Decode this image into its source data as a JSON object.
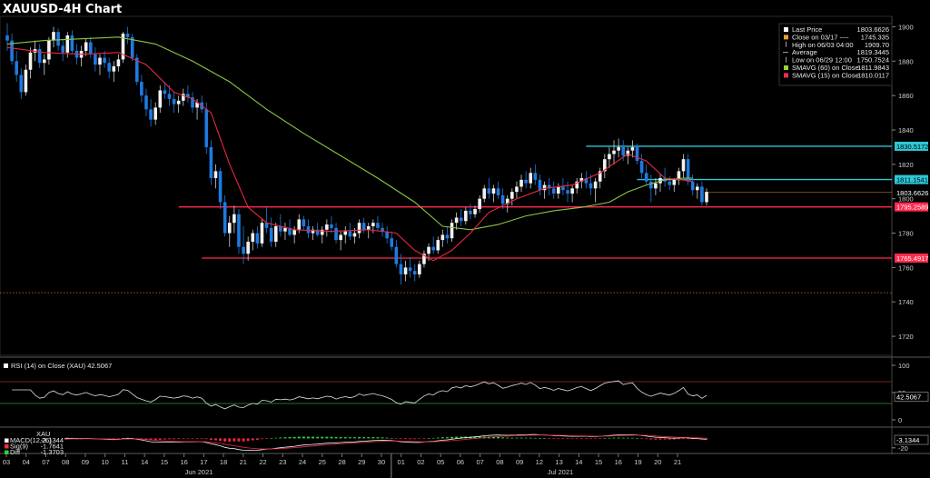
{
  "chart_data": {
    "type": "candlestick",
    "title": "XAUUSD-4H Chart",
    "y_range": [
      1710,
      1905
    ],
    "y_ticks": [
      1720,
      1740,
      1760,
      1780,
      1800,
      1820,
      1840,
      1860,
      1880,
      1900
    ],
    "day_labels": [
      "03",
      "04",
      "07",
      "08",
      "09",
      "10",
      "11",
      "14",
      "15",
      "16",
      "17",
      "18",
      "21",
      "22",
      "23",
      "24",
      "25",
      "28",
      "29",
      "30",
      "01",
      "02",
      "05",
      "06",
      "07",
      "08",
      "09",
      "12",
      "13",
      "14",
      "15",
      "16",
      "19",
      "20",
      "21"
    ],
    "month_labels": [
      "Jun 2021",
      "Jul 2021"
    ],
    "ohlc": [
      [
        1895,
        1902,
        1886,
        1892
      ],
      [
        1892,
        1896,
        1878,
        1880
      ],
      [
        1880,
        1886,
        1868,
        1872
      ],
      [
        1872,
        1876,
        1858,
        1862
      ],
      [
        1862,
        1878,
        1860,
        1875
      ],
      [
        1875,
        1888,
        1870,
        1885
      ],
      [
        1885,
        1892,
        1880,
        1887
      ],
      [
        1887,
        1890,
        1876,
        1879
      ],
      [
        1879,
        1884,
        1872,
        1881
      ],
      [
        1881,
        1894,
        1878,
        1892
      ],
      [
        1892,
        1900,
        1888,
        1897
      ],
      [
        1897,
        1899,
        1886,
        1889
      ],
      [
        1889,
        1893,
        1880,
        1885
      ],
      [
        1885,
        1897,
        1882,
        1895
      ],
      [
        1895,
        1898,
        1884,
        1886
      ],
      [
        1886,
        1890,
        1878,
        1882
      ],
      [
        1882,
        1889,
        1877,
        1886
      ],
      [
        1886,
        1893,
        1883,
        1891
      ],
      [
        1891,
        1894,
        1882,
        1884
      ],
      [
        1884,
        1888,
        1874,
        1878
      ],
      [
        1878,
        1884,
        1872,
        1882
      ],
      [
        1882,
        1886,
        1876,
        1879
      ],
      [
        1879,
        1882,
        1870,
        1874
      ],
      [
        1874,
        1880,
        1868,
        1877
      ],
      [
        1877,
        1884,
        1874,
        1881
      ],
      [
        1881,
        1897,
        1879,
        1896
      ],
      [
        1896,
        1900,
        1890,
        1894
      ],
      [
        1894,
        1896,
        1880,
        1882
      ],
      [
        1882,
        1884,
        1866,
        1868
      ],
      [
        1868,
        1872,
        1856,
        1860
      ],
      [
        1860,
        1864,
        1848,
        1852
      ],
      [
        1852,
        1858,
        1842,
        1846
      ],
      [
        1846,
        1856,
        1843,
        1853
      ],
      [
        1853,
        1866,
        1850,
        1863
      ],
      [
        1863,
        1868,
        1858,
        1861
      ],
      [
        1861,
        1866,
        1854,
        1858
      ],
      [
        1858,
        1862,
        1850,
        1855
      ],
      [
        1855,
        1860,
        1850,
        1857
      ],
      [
        1857,
        1864,
        1854,
        1861
      ],
      [
        1861,
        1866,
        1856,
        1859
      ],
      [
        1859,
        1862,
        1850,
        1853
      ],
      [
        1853,
        1858,
        1846,
        1856
      ],
      [
        1856,
        1860,
        1850,
        1852
      ],
      [
        1852,
        1856,
        1826,
        1830
      ],
      [
        1830,
        1834,
        1808,
        1812
      ],
      [
        1812,
        1820,
        1806,
        1816
      ],
      [
        1816,
        1818,
        1794,
        1798
      ],
      [
        1798,
        1802,
        1778,
        1780
      ],
      [
        1780,
        1790,
        1772,
        1786
      ],
      [
        1786,
        1796,
        1780,
        1791
      ],
      [
        1791,
        1794,
        1768,
        1772
      ],
      [
        1772,
        1784,
        1762,
        1768
      ],
      [
        1768,
        1778,
        1764,
        1775
      ],
      [
        1775,
        1782,
        1770,
        1780
      ],
      [
        1780,
        1784,
        1771,
        1774
      ],
      [
        1774,
        1788,
        1772,
        1786
      ],
      [
        1786,
        1795,
        1780,
        1783
      ],
      [
        1783,
        1789,
        1772,
        1775
      ],
      [
        1775,
        1786,
        1772,
        1784
      ],
      [
        1784,
        1791,
        1778,
        1781
      ],
      [
        1781,
        1786,
        1776,
        1783
      ],
      [
        1783,
        1788,
        1778,
        1779
      ],
      [
        1779,
        1784,
        1774,
        1782
      ],
      [
        1782,
        1791,
        1780,
        1788
      ],
      [
        1788,
        1790,
        1782,
        1784
      ],
      [
        1784,
        1788,
        1777,
        1780
      ],
      [
        1780,
        1784,
        1776,
        1782
      ],
      [
        1782,
        1786,
        1778,
        1779
      ],
      [
        1779,
        1784,
        1774,
        1782
      ],
      [
        1782,
        1788,
        1778,
        1785
      ],
      [
        1785,
        1790,
        1780,
        1783
      ],
      [
        1783,
        1786,
        1774,
        1776
      ],
      [
        1776,
        1781,
        1770,
        1779
      ],
      [
        1779,
        1784,
        1774,
        1781
      ],
      [
        1781,
        1786,
        1776,
        1778
      ],
      [
        1778,
        1783,
        1774,
        1780
      ],
      [
        1780,
        1788,
        1777,
        1786
      ],
      [
        1786,
        1789,
        1780,
        1782
      ],
      [
        1782,
        1786,
        1777,
        1784
      ],
      [
        1784,
        1788,
        1780,
        1786
      ],
      [
        1786,
        1790,
        1781,
        1783
      ],
      [
        1783,
        1786,
        1778,
        1781
      ],
      [
        1781,
        1784,
        1774,
        1777
      ],
      [
        1777,
        1781,
        1770,
        1772
      ],
      [
        1772,
        1776,
        1760,
        1762
      ],
      [
        1762,
        1768,
        1750,
        1756
      ],
      [
        1756,
        1764,
        1752,
        1760
      ],
      [
        1760,
        1766,
        1754,
        1758
      ],
      [
        1758,
        1762,
        1752,
        1756
      ],
      [
        1756,
        1764,
        1754,
        1762
      ],
      [
        1762,
        1770,
        1760,
        1768
      ],
      [
        1768,
        1774,
        1764,
        1772
      ],
      [
        1772,
        1778,
        1768,
        1770
      ],
      [
        1770,
        1778,
        1768,
        1776
      ],
      [
        1776,
        1782,
        1772,
        1779
      ],
      [
        1779,
        1784,
        1774,
        1777
      ],
      [
        1777,
        1788,
        1775,
        1786
      ],
      [
        1786,
        1792,
        1782,
        1789
      ],
      [
        1789,
        1794,
        1784,
        1787
      ],
      [
        1787,
        1795,
        1785,
        1793
      ],
      [
        1793,
        1797,
        1788,
        1791
      ],
      [
        1791,
        1796,
        1789,
        1794
      ],
      [
        1794,
        1802,
        1792,
        1800
      ],
      [
        1800,
        1808,
        1798,
        1806
      ],
      [
        1806,
        1812,
        1800,
        1803
      ],
      [
        1803,
        1808,
        1798,
        1806
      ],
      [
        1806,
        1810,
        1800,
        1802
      ],
      [
        1802,
        1806,
        1794,
        1797
      ],
      [
        1797,
        1802,
        1792,
        1800
      ],
      [
        1800,
        1806,
        1796,
        1804
      ],
      [
        1804,
        1810,
        1800,
        1807
      ],
      [
        1807,
        1814,
        1804,
        1811
      ],
      [
        1811,
        1816,
        1806,
        1809
      ],
      [
        1809,
        1818,
        1806,
        1815
      ],
      [
        1815,
        1820,
        1808,
        1811
      ],
      [
        1811,
        1814,
        1802,
        1805
      ],
      [
        1805,
        1810,
        1800,
        1808
      ],
      [
        1808,
        1812,
        1802,
        1806
      ],
      [
        1806,
        1810,
        1800,
        1803
      ],
      [
        1803,
        1809,
        1800,
        1807
      ],
      [
        1807,
        1812,
        1802,
        1805
      ],
      [
        1805,
        1810,
        1798,
        1803
      ],
      [
        1803,
        1808,
        1798,
        1806
      ],
      [
        1806,
        1812,
        1803,
        1810
      ],
      [
        1810,
        1815,
        1806,
        1812
      ],
      [
        1812,
        1816,
        1806,
        1809
      ],
      [
        1809,
        1814,
        1802,
        1806
      ],
      [
        1806,
        1812,
        1798,
        1810
      ],
      [
        1810,
        1818,
        1806,
        1816
      ],
      [
        1816,
        1826,
        1812,
        1823
      ],
      [
        1823,
        1830,
        1818,
        1826
      ],
      [
        1826,
        1834,
        1820,
        1828
      ],
      [
        1828,
        1835,
        1824,
        1830
      ],
      [
        1830,
        1834,
        1822,
        1825
      ],
      [
        1825,
        1830,
        1820,
        1828
      ],
      [
        1828,
        1834,
        1824,
        1830
      ],
      [
        1830,
        1832,
        1820,
        1822
      ],
      [
        1822,
        1826,
        1812,
        1815
      ],
      [
        1815,
        1820,
        1808,
        1810
      ],
      [
        1810,
        1814,
        1798,
        1806
      ],
      [
        1806,
        1812,
        1802,
        1809
      ],
      [
        1809,
        1814,
        1804,
        1812
      ],
      [
        1812,
        1818,
        1807,
        1810
      ],
      [
        1810,
        1813,
        1805,
        1808
      ],
      [
        1808,
        1812,
        1804,
        1811
      ],
      [
        1811,
        1818,
        1808,
        1816
      ],
      [
        1816,
        1826,
        1812,
        1823
      ],
      [
        1823,
        1826,
        1808,
        1810
      ],
      [
        1810,
        1814,
        1802,
        1805
      ],
      [
        1805,
        1809,
        1800,
        1807
      ],
      [
        1807,
        1810,
        1796,
        1798
      ],
      [
        1798,
        1806,
        1796,
        1804
      ]
    ],
    "sma_slow_pts": [
      [
        0,
        1890
      ],
      [
        8,
        1892
      ],
      [
        16,
        1893
      ],
      [
        24,
        1894
      ],
      [
        32,
        1890
      ],
      [
        40,
        1880
      ],
      [
        48,
        1868
      ],
      [
        56,
        1852
      ],
      [
        64,
        1838
      ],
      [
        72,
        1825
      ],
      [
        80,
        1812
      ],
      [
        88,
        1798
      ],
      [
        94,
        1784
      ],
      [
        100,
        1782
      ],
      [
        106,
        1785
      ],
      [
        112,
        1790
      ],
      [
        118,
        1793
      ],
      [
        124,
        1795
      ],
      [
        130,
        1798
      ],
      [
        134,
        1804
      ],
      [
        138,
        1808
      ],
      [
        142,
        1811
      ],
      [
        146,
        1812
      ],
      [
        148,
        1812
      ]
    ],
    "sma_fast_pts": [
      [
        0,
        1888
      ],
      [
        8,
        1885
      ],
      [
        16,
        1884
      ],
      [
        24,
        1885
      ],
      [
        30,
        1878
      ],
      [
        36,
        1862
      ],
      [
        40,
        1858
      ],
      [
        44,
        1850
      ],
      [
        48,
        1820
      ],
      [
        52,
        1795
      ],
      [
        56,
        1786
      ],
      [
        62,
        1782
      ],
      [
        70,
        1781
      ],
      [
        78,
        1782
      ],
      [
        84,
        1780
      ],
      [
        88,
        1770
      ],
      [
        92,
        1764
      ],
      [
        96,
        1770
      ],
      [
        100,
        1780
      ],
      [
        104,
        1792
      ],
      [
        110,
        1800
      ],
      [
        116,
        1806
      ],
      [
        122,
        1808
      ],
      [
        128,
        1815
      ],
      [
        134,
        1826
      ],
      [
        138,
        1822
      ],
      [
        142,
        1812
      ],
      [
        146,
        1811
      ],
      [
        148,
        1810
      ]
    ],
    "hlines": [
      {
        "value": 1830.5172,
        "label": "1830.5172",
        "color": "#2ec7d6",
        "from": 125
      },
      {
        "value": 1811.1541,
        "label": "1811.1541",
        "color": "#2ec7d6",
        "from": 136
      },
      {
        "value": 1795.2589,
        "label": "1795.2589",
        "color": "#ff2a4f",
        "from": 37
      },
      {
        "value": 1765.4917,
        "label": "1765.4917",
        "color": "#ff2a4f",
        "from": 42
      }
    ],
    "last_price": {
      "value": 1803.6626,
      "label": "1803.6626"
    },
    "avg_dotted": {
      "value": 1745.335
    },
    "legend": [
      {
        "sym": "box",
        "color": "#ffffff",
        "label": "Last Price",
        "value": "1803.6626"
      },
      {
        "sym": "box",
        "color": "#f0a030",
        "label": "Close on 03/17 ----",
        "value": "1745.335"
      },
      {
        "sym": "arrow",
        "color": "#cccccc",
        "label": "High on 06/03 04:00",
        "value": "1909.70"
      },
      {
        "sym": "dash",
        "color": "#cccccc",
        "label": "Average",
        "value": "1819.3445"
      },
      {
        "sym": "arrow",
        "color": "#cccccc",
        "label": "Low on 06/29 12:00",
        "value": "1750.7524"
      },
      {
        "sym": "box",
        "color": "#9bd23a",
        "label": "SMAVG (60)  on Close",
        "value": "1811.9843"
      },
      {
        "sym": "box",
        "color": "#ff2a4f",
        "label": "SMAVG (15)  on Close",
        "value": "1810.0117"
      }
    ],
    "rsi": {
      "label": "RSI (14)  on Close (XAU)  42.5067",
      "value_label": "42.5067",
      "y_range": [
        -10,
        110
      ],
      "y_ticks": [
        0,
        50,
        100
      ],
      "upper": 70,
      "lower": 30
    },
    "macd": {
      "title": "XAU",
      "y_ticks": [
        -20
      ],
      "value_label": "-3.1344",
      "legend": [
        {
          "color": "#ffffff",
          "label": "MACD(12,26)",
          "value": "-3.1344"
        },
        {
          "color": "#ff2a4f",
          "label": "Sig(9)",
          "value": "-1.7641"
        },
        {
          "color": "#2bd33c",
          "label": "Diff",
          "value": "-1.3703"
        }
      ]
    }
  }
}
